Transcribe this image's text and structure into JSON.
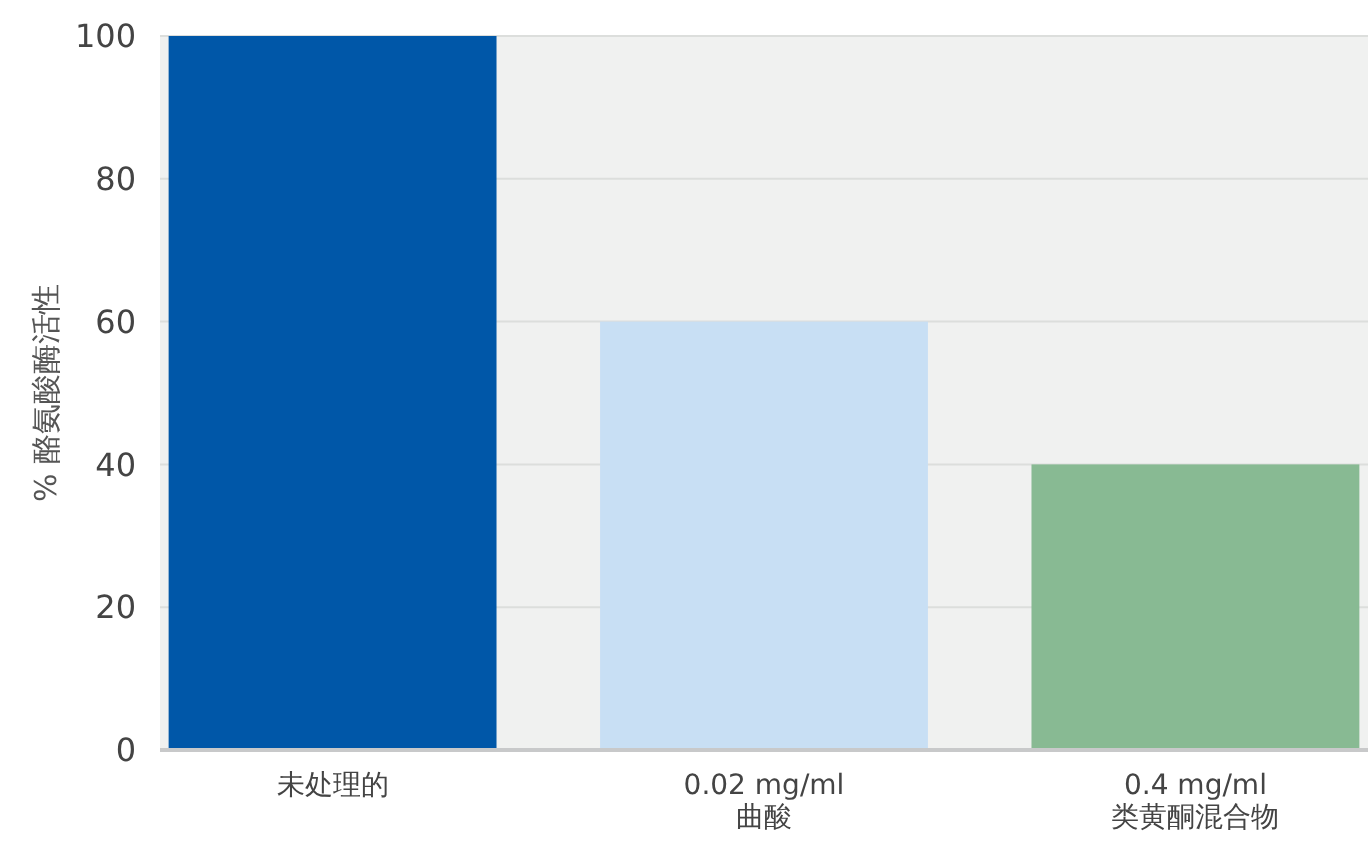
{
  "chart_data": {
    "type": "bar",
    "ylabel": "% 酪氨酸酶活性",
    "categories": [
      "未处理的",
      "0.02 mg/ml\n曲酸",
      "0.4 mg/ml\n类黄酮混合物"
    ],
    "values": [
      100,
      60,
      40
    ],
    "colors": [
      "#0057a8",
      "#c8dff4",
      "#88ba93"
    ],
    "ylim": [
      0,
      100
    ],
    "yticks": [
      0,
      20,
      40,
      60,
      80,
      100
    ],
    "grid": "y"
  }
}
